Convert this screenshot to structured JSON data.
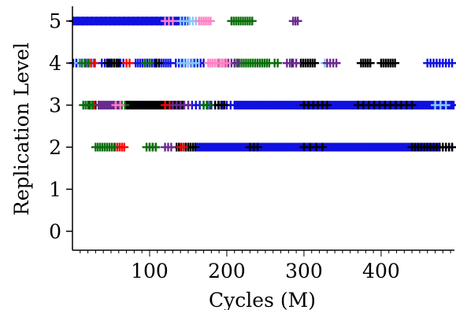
{
  "chart_data": {
    "type": "scatter",
    "title": "",
    "xlabel": "Cycles (M)",
    "ylabel": "Replication Level",
    "xlim": [
      0,
      495
    ],
    "ylim": [
      -0.45,
      5.35
    ],
    "x_ticks": [
      100,
      200,
      300,
      400
    ],
    "x_tick_labels": [
      "100",
      "200",
      "300",
      "400"
    ],
    "y_ticks": [
      0,
      1,
      2,
      3,
      4,
      5
    ],
    "y_tick_labels": [
      "0",
      "1",
      "2",
      "3",
      "4",
      "5"
    ],
    "x_minor_step": 10,
    "grid": false,
    "legend": "none",
    "marker": "plus",
    "colors": {
      "black": "#000000",
      "blue": "#1010e0",
      "lightblue": "#87c8f5",
      "red": "#ff0000",
      "green": "#0a6e0a",
      "purple": "#6a2a90",
      "pink": "#ff80c0"
    },
    "series": [
      {
        "color": "blue",
        "points": [
          {
            "y": 5,
            "from": 1,
            "to": 150,
            "step": 2
          },
          {
            "y": 5,
            "from": 1,
            "to": 130,
            "step": 6
          },
          {
            "y": 4,
            "from": 1,
            "to": 30,
            "step": 4
          },
          {
            "y": 4,
            "from": 38,
            "to": 68,
            "step": 4
          },
          {
            "y": 4,
            "from": 82,
            "to": 128,
            "step": 3
          },
          {
            "y": 4,
            "from": 134,
            "to": 172,
            "step": 4
          },
          {
            "y": 4,
            "from": 460,
            "to": 492,
            "step": 4
          },
          {
            "y": 3,
            "from": 210,
            "to": 495,
            "step": 2
          },
          {
            "y": 3,
            "from": 150,
            "to": 205,
            "step": 5
          },
          {
            "y": 2,
            "from": 160,
            "to": 475,
            "step": 2
          },
          {
            "y": 2,
            "from": 480,
            "to": 492,
            "step": 4
          }
        ]
      },
      {
        "color": "lightblue",
        "points": [
          {
            "y": 5,
            "from": 140,
            "to": 160,
            "step": 4
          },
          {
            "y": 4,
            "from": 8,
            "to": 28,
            "step": 6
          },
          {
            "y": 4,
            "from": 140,
            "to": 160,
            "step": 5
          },
          {
            "y": 4,
            "from": 327,
            "to": 330,
            "step": 4
          },
          {
            "y": 3,
            "from": 100,
            "to": 140,
            "step": 6
          },
          {
            "y": 3,
            "from": 470,
            "to": 490,
            "step": 7
          },
          {
            "y": 2,
            "from": 140,
            "to": 160,
            "step": 6
          }
        ]
      },
      {
        "color": "black",
        "points": [
          {
            "y": 4,
            "from": 45,
            "to": 60,
            "step": 3
          },
          {
            "y": 4,
            "from": 108,
            "to": 112,
            "step": 4
          },
          {
            "y": 4,
            "from": 282,
            "to": 285,
            "step": 3
          },
          {
            "y": 4,
            "from": 296,
            "to": 316,
            "step": 3
          },
          {
            "y": 4,
            "from": 374,
            "to": 387,
            "step": 3
          },
          {
            "y": 4,
            "from": 400,
            "to": 419,
            "step": 3
          },
          {
            "y": 3,
            "from": 22,
            "to": 30,
            "step": 4
          },
          {
            "y": 3,
            "from": 70,
            "to": 145,
            "step": 2
          },
          {
            "y": 3,
            "from": 185,
            "to": 200,
            "step": 4
          },
          {
            "y": 3,
            "from": 300,
            "to": 330,
            "step": 6
          },
          {
            "y": 3,
            "from": 370,
            "to": 440,
            "step": 7
          },
          {
            "y": 2,
            "from": 100,
            "to": 108,
            "step": 4
          },
          {
            "y": 2,
            "from": 135,
            "to": 160,
            "step": 3
          },
          {
            "y": 2,
            "from": 230,
            "to": 240,
            "step": 5
          },
          {
            "y": 2,
            "from": 300,
            "to": 330,
            "step": 8
          },
          {
            "y": 2,
            "from": 440,
            "to": 495,
            "step": 4
          }
        ]
      },
      {
        "color": "red",
        "points": [
          {
            "y": 4,
            "from": 20,
            "to": 28,
            "step": 4
          },
          {
            "y": 4,
            "from": 70,
            "to": 74,
            "step": 4
          },
          {
            "y": 3,
            "from": 28,
            "to": 34,
            "step": 6
          },
          {
            "y": 3,
            "from": 120,
            "to": 126,
            "step": 6
          },
          {
            "y": 2,
            "from": 55,
            "to": 68,
            "step": 3
          },
          {
            "y": 2,
            "from": 140,
            "to": 144,
            "step": 4
          }
        ]
      },
      {
        "color": "green",
        "points": [
          {
            "y": 5,
            "from": 206,
            "to": 234,
            "step": 3
          },
          {
            "y": 4,
            "from": 12,
            "to": 20,
            "step": 4
          },
          {
            "y": 4,
            "from": 94,
            "to": 100,
            "step": 6
          },
          {
            "y": 4,
            "from": 210,
            "to": 256,
            "step": 3
          },
          {
            "y": 4,
            "from": 262,
            "to": 266,
            "step": 4
          },
          {
            "y": 3,
            "from": 14,
            "to": 26,
            "step": 3
          },
          {
            "y": 3,
            "from": 60,
            "to": 68,
            "step": 4
          },
          {
            "y": 3,
            "from": 170,
            "to": 178,
            "step": 4
          },
          {
            "y": 2,
            "from": 30,
            "to": 54,
            "step": 3
          },
          {
            "y": 2,
            "from": 96,
            "to": 108,
            "step": 4
          }
        ]
      },
      {
        "color": "purple",
        "points": [
          {
            "y": 5,
            "from": 286,
            "to": 292,
            "step": 3
          },
          {
            "y": 4,
            "from": 190,
            "to": 215,
            "step": 4
          },
          {
            "y": 4,
            "from": 278,
            "to": 290,
            "step": 4
          },
          {
            "y": 4,
            "from": 330,
            "to": 342,
            "step": 4
          },
          {
            "y": 3,
            "from": 34,
            "to": 62,
            "step": 2
          },
          {
            "y": 3,
            "from": 130,
            "to": 150,
            "step": 5
          },
          {
            "y": 2,
            "from": 120,
            "to": 128,
            "step": 4
          }
        ]
      },
      {
        "color": "pink",
        "points": [
          {
            "y": 5,
            "from": 120,
            "to": 130,
            "step": 5
          },
          {
            "y": 5,
            "from": 164,
            "to": 180,
            "step": 3
          },
          {
            "y": 4,
            "from": 176,
            "to": 202,
            "step": 3
          },
          {
            "y": 3,
            "from": 56,
            "to": 62,
            "step": 6
          }
        ]
      }
    ]
  }
}
